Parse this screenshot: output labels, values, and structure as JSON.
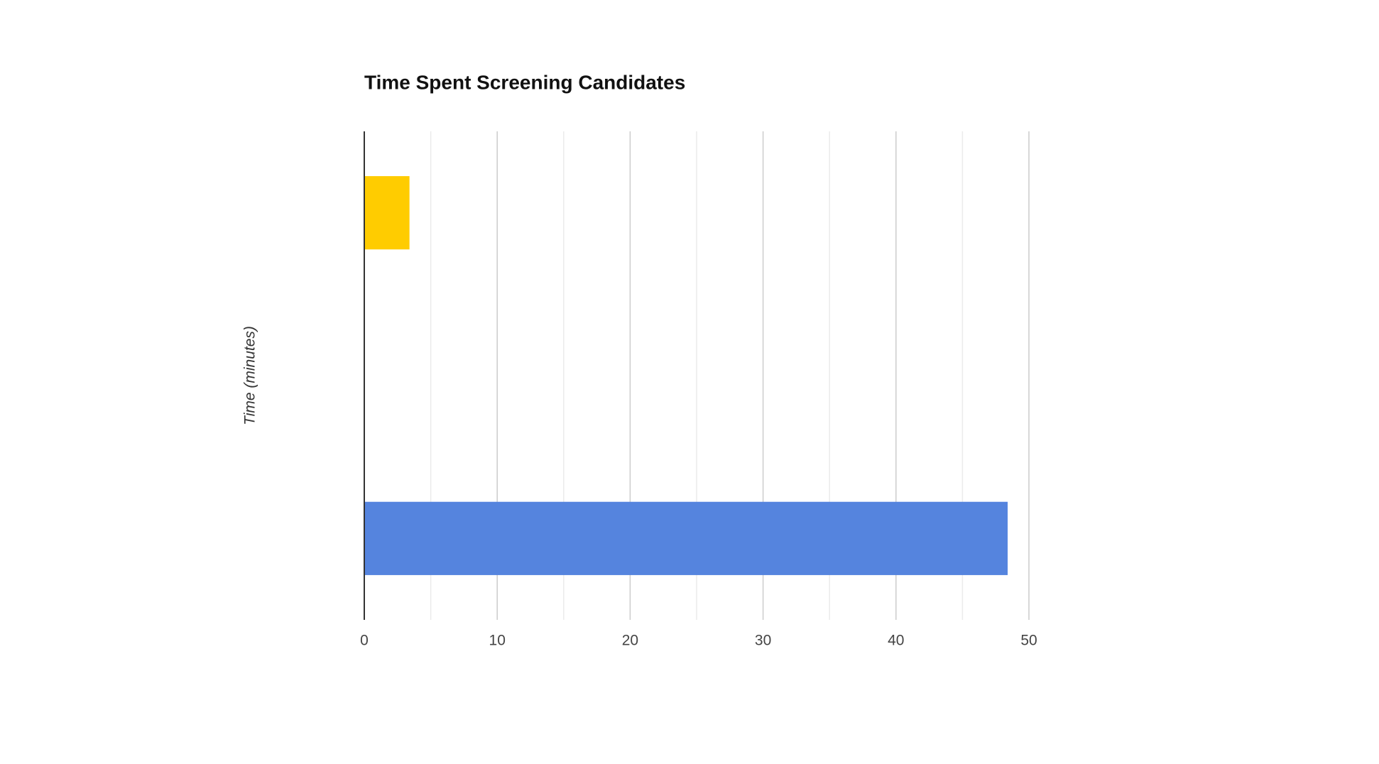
{
  "chart_data": {
    "type": "hbar",
    "title": "Time Spent Screening Candidates",
    "y_label": "Time (minutes)",
    "categories": [
      null,
      null,
      null
    ],
    "values": [
      3.4,
      null,
      48.4
    ],
    "colors": [
      "#ffcc00",
      null,
      "#5584de"
    ],
    "xlim": [
      0,
      50
    ],
    "xticks": [
      0,
      10,
      20,
      30,
      40,
      50
    ],
    "minor_xticks": [
      5,
      15,
      25,
      35,
      45
    ],
    "grid": true
  }
}
